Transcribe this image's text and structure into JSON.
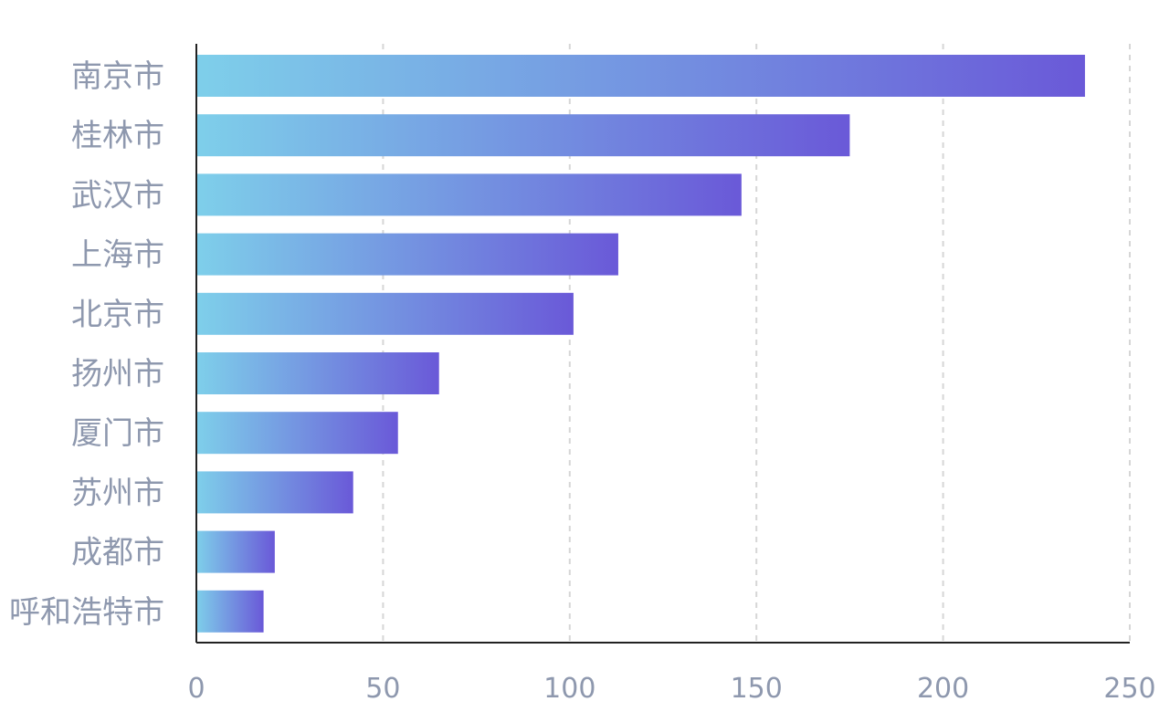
{
  "chart_data": {
    "type": "bar",
    "orientation": "horizontal",
    "categories": [
      "南京市",
      "桂林市",
      "武汉市",
      "上海市",
      "北京市",
      "扬州市",
      "厦门市",
      "苏州市",
      "成都市",
      "呼和浩特市"
    ],
    "values": [
      238,
      175,
      146,
      113,
      101,
      65,
      54,
      42,
      21,
      18
    ],
    "xlim": [
      0,
      250
    ],
    "xticks": [
      "0",
      "50",
      "100",
      "150",
      "200",
      "250"
    ],
    "grid": "vertical-dashed",
    "colors": {
      "bar_start": "#7ECFEA",
      "bar_end": "#6A59D8",
      "axis": "#222222",
      "grid": "#D6D6D6",
      "label": "#8E98AE"
    }
  }
}
